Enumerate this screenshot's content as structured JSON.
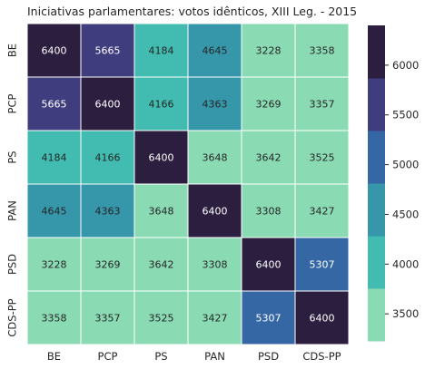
{
  "chart_data": {
    "type": "heatmap",
    "title": "Iniciativas parlamentares: votos idênticos, XIII Leg. - 2015",
    "x_categories": [
      "BE",
      "PCP",
      "PS",
      "PAN",
      "PSD",
      "CDS-PP"
    ],
    "y_categories": [
      "BE",
      "PCP",
      "PS",
      "PAN",
      "PSD",
      "CDS-PP"
    ],
    "values": [
      [
        6400,
        5665,
        4184,
        4645,
        3228,
        3358
      ],
      [
        5665,
        6400,
        4166,
        4363,
        3269,
        3357
      ],
      [
        4184,
        4166,
        6400,
        3648,
        3642,
        3525
      ],
      [
        4645,
        4363,
        3648,
        6400,
        3308,
        3427
      ],
      [
        3228,
        3269,
        3642,
        3308,
        6400,
        5307
      ],
      [
        3358,
        3357,
        3525,
        3427,
        5307,
        6400
      ]
    ],
    "colorbar": {
      "ticks": [
        3500,
        4000,
        4500,
        5000,
        5500,
        6000
      ],
      "range": [
        3228,
        6400
      ],
      "colors": [
        "#8adbb4",
        "#42bbb1",
        "#3696aa",
        "#3567a4",
        "#403d7e",
        "#2c1e3e"
      ]
    },
    "annotations": true,
    "cell_border": "#ffffff"
  }
}
